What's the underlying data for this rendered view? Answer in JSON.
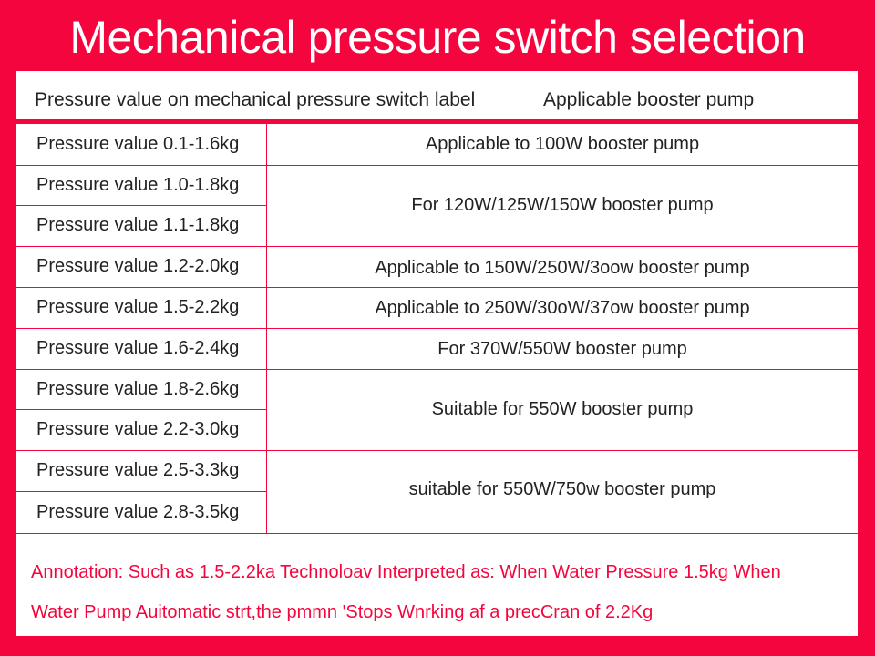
{
  "title": "Mechanical pressure switch selection",
  "header": {
    "col1": "Pressure value on mechanical pressure switch label",
    "col2": "Applicable booster pump"
  },
  "pressure_values": [
    "Pressure value 0.1-1.6kg",
    "Pressure value 1.0-1.8kg",
    "Pressure value 1.1-1.8kg",
    "Pressure value 1.2-2.0kg",
    "Pressure value 1.5-2.2kg",
    "Pressure value 1.6-2.4kg",
    "Pressure value 1.8-2.6kg",
    "Pressure value 2.2-3.0kg",
    "Pressure value 2.5-3.3kg",
    "Pressure value 2.8-3.5kg"
  ],
  "pumps": [
    "Applicable to 100W booster pump",
    "For 120W/125W/150W booster pump",
    "Applicable to 150W/250W/3oow booster pump",
    "Applicable to 250W/30oW/37ow booster pump",
    "For 370W/550W booster pump",
    "Suitable for 550W booster pump",
    "suitable for 550W/750w booster pump"
  ],
  "annotation": {
    "line1": "Annotation: Such as 1.5-2.2ka Technoloav Interpreted as: When Water Pressure 1.5kg When",
    "line2": "Water Pump Auitomatic strt,the pmmn 'Stops Wnrking  af a precCran of 2.2Kg"
  },
  "colors": {
    "accent": "#f5053d",
    "panel": "#ffffff",
    "text": "#222222"
  }
}
